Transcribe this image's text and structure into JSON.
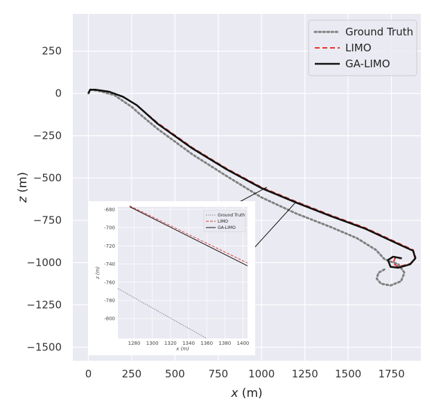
{
  "chart_data": {
    "type": "line",
    "xlabel": "x (m)",
    "ylabel": "z (m)",
    "xlim": [
      -90,
      1920
    ],
    "ylim": [
      -1580,
      470
    ],
    "x_ticks": [
      0,
      250,
      500,
      750,
      1000,
      1250,
      1500,
      1750
    ],
    "y_ticks": [
      250,
      0,
      -250,
      -500,
      -750,
      -1000,
      -1250,
      -1500
    ],
    "grid": true,
    "legend_position": "top-right",
    "series": [
      {
        "name": "Ground Truth",
        "color": "#808080",
        "style": "dotted",
        "points": [
          [
            0,
            0
          ],
          [
            10,
            22
          ],
          [
            60,
            15
          ],
          [
            150,
            -10
          ],
          [
            250,
            -80
          ],
          [
            300,
            -125
          ],
          [
            400,
            -210
          ],
          [
            600,
            -360
          ],
          [
            800,
            -490
          ],
          [
            1000,
            -615
          ],
          [
            1200,
            -710
          ],
          [
            1400,
            -790
          ],
          [
            1550,
            -855
          ],
          [
            1660,
            -925
          ],
          [
            1710,
            -980
          ],
          [
            1790,
            -1010
          ],
          [
            1825,
            -1060
          ],
          [
            1805,
            -1110
          ],
          [
            1745,
            -1135
          ],
          [
            1690,
            -1125
          ],
          [
            1665,
            -1095
          ],
          [
            1675,
            -1060
          ],
          [
            1710,
            -1040
          ]
        ]
      },
      {
        "name": "LIMO",
        "color": "#e8312a",
        "style": "dashed",
        "points": [
          [
            0,
            0
          ],
          [
            10,
            22
          ],
          [
            40,
            22
          ],
          [
            120,
            10
          ],
          [
            200,
            -20
          ],
          [
            280,
            -70
          ],
          [
            400,
            -175
          ],
          [
            600,
            -320
          ],
          [
            800,
            -445
          ],
          [
            1000,
            -555
          ],
          [
            1200,
            -640
          ],
          [
            1400,
            -720
          ],
          [
            1600,
            -795
          ],
          [
            1800,
            -890
          ],
          [
            1875,
            -925
          ],
          [
            1890,
            -970
          ],
          [
            1860,
            -1005
          ],
          [
            1790,
            -1025
          ],
          [
            1760,
            -1005
          ],
          [
            1770,
            -975
          ],
          [
            1810,
            -975
          ]
        ]
      },
      {
        "name": "GA-LIMO",
        "color": "#111111",
        "style": "solid",
        "points": [
          [
            0,
            0
          ],
          [
            10,
            22
          ],
          [
            40,
            22
          ],
          [
            120,
            10
          ],
          [
            200,
            -20
          ],
          [
            280,
            -70
          ],
          [
            400,
            -180
          ],
          [
            600,
            -325
          ],
          [
            800,
            -450
          ],
          [
            1000,
            -560
          ],
          [
            1200,
            -645
          ],
          [
            1400,
            -725
          ],
          [
            1600,
            -800
          ],
          [
            1800,
            -895
          ],
          [
            1875,
            -930
          ],
          [
            1888,
            -975
          ],
          [
            1858,
            -1010
          ],
          [
            1790,
            -1030
          ],
          [
            1745,
            -1025
          ],
          [
            1730,
            -985
          ],
          [
            1760,
            -965
          ],
          [
            1810,
            -975
          ]
        ]
      }
    ],
    "inset": {
      "xlim": [
        1262,
        1405
      ],
      "ylim": [
        -822,
        -677
      ],
      "x_ticks": [
        1280,
        1300,
        1320,
        1340,
        1360,
        1380,
        1400
      ],
      "y_ticks": [
        -680,
        -700,
        -720,
        -740,
        -760,
        -780,
        -800
      ],
      "xlabel": "x (m)",
      "ylabel": "z (m)",
      "legend_position": "top-right",
      "series": [
        {
          "name": "Ground Truth",
          "points": [
            [
              1262,
              -767
            ],
            [
              1360,
              -822
            ]
          ]
        },
        {
          "name": "LIMO",
          "points": [
            [
              1275,
              -676
            ],
            [
              1405,
              -739
            ]
          ]
        },
        {
          "name": "GA-LIMO",
          "points": [
            [
              1275,
              -677
            ],
            [
              1405,
              -742
            ]
          ]
        }
      ]
    }
  }
}
